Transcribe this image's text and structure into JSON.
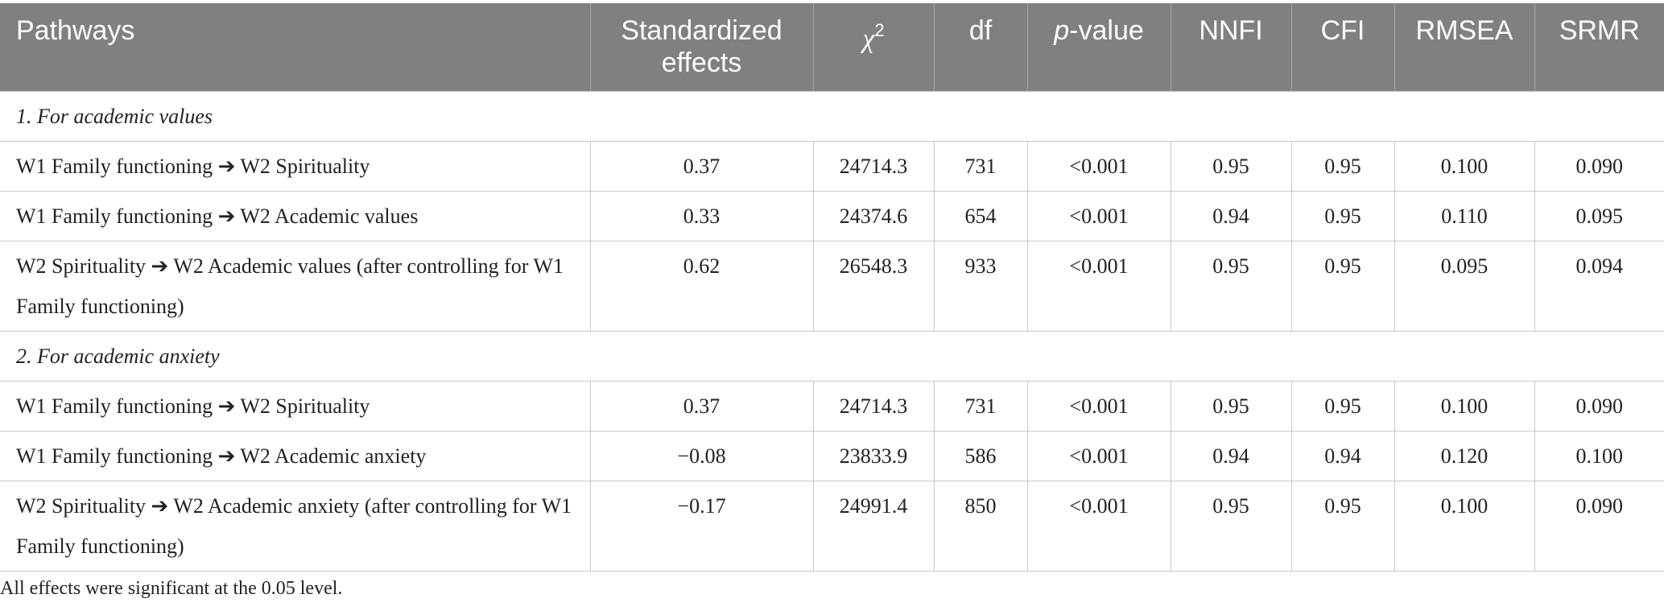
{
  "table": {
    "header": [
      "Pathways",
      "Standardized effects",
      {
        "symbol": "χ",
        "sup": "2"
      },
      "df",
      {
        "italic": "p",
        "rest": "-value"
      },
      "NNFI",
      "CFI",
      "RMSEA",
      "SRMR"
    ],
    "sections": [
      {
        "title": "1. For academic values",
        "rows": [
          [
            "W1 Family functioning ➔ W2 Spirituality",
            "0.37",
            "24714.3",
            "731",
            "<0.001",
            "0.95",
            "0.95",
            "0.100",
            "0.090"
          ],
          [
            "W1 Family functioning ➔ W2 Academic values",
            "0.33",
            "24374.6",
            "654",
            "<0.001",
            "0.94",
            "0.95",
            "0.110",
            "0.095"
          ],
          [
            "W2 Spirituality ➔ W2 Academic values (after controlling for W1 Family functioning)",
            "0.62",
            "26548.3",
            "933",
            "<0.001",
            "0.95",
            "0.95",
            "0.095",
            "0.094"
          ]
        ]
      },
      {
        "title": "2. For academic anxiety",
        "rows": [
          [
            "W1 Family functioning ➔ W2 Spirituality",
            "0.37",
            "24714.3",
            "731",
            "<0.001",
            "0.95",
            "0.95",
            "0.100",
            "0.090"
          ],
          [
            "W1 Family functioning ➔ W2 Academic anxiety",
            "−0.08",
            "23833.9",
            "586",
            "<0.001",
            "0.94",
            "0.94",
            "0.120",
            "0.100"
          ],
          [
            "W2 Spirituality ➔ W2 Academic anxiety (after controlling for W1 Family functioning)",
            "−0.17",
            "24991.4",
            "850",
            "<0.001",
            "0.95",
            "0.95",
            "0.100",
            "0.090"
          ]
        ]
      }
    ]
  },
  "footnote": "All effects were significant at the 0.05 level."
}
